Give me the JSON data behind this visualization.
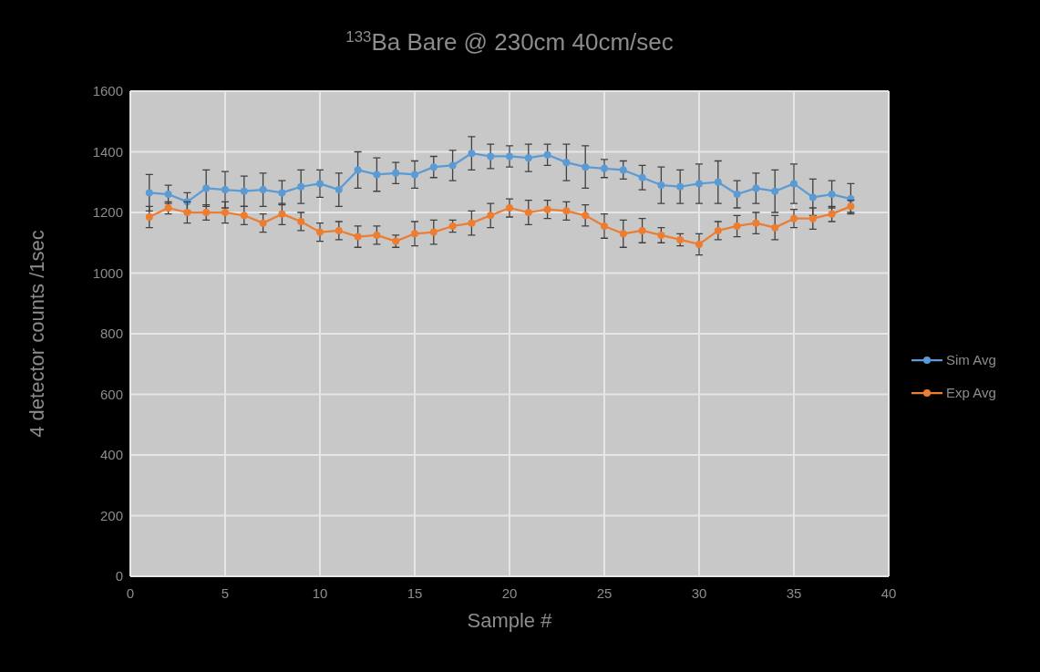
{
  "chart_data": {
    "type": "line",
    "title": "$^{133}$Ba Bare @ 230cm 40cm/sec",
    "xlabel": "Sample #",
    "ylabel": "4 detector counts /1sec",
    "x": [
      1,
      2,
      3,
      4,
      5,
      6,
      7,
      8,
      9,
      10,
      11,
      12,
      13,
      14,
      15,
      16,
      17,
      18,
      19,
      20,
      21,
      22,
      23,
      24,
      25,
      26,
      27,
      28,
      29,
      30,
      31,
      32,
      33,
      34,
      35,
      36,
      37,
      38
    ],
    "series": [
      {
        "name": "Sim Avg",
        "color": "#5b9bd5",
        "values": [
          1265,
          1260,
          1235,
          1280,
          1275,
          1270,
          1275,
          1265,
          1285,
          1295,
          1275,
          1340,
          1325,
          1330,
          1325,
          1350,
          1355,
          1395,
          1385,
          1385,
          1380,
          1390,
          1365,
          1350,
          1345,
          1340,
          1315,
          1290,
          1285,
          1295,
          1300,
          1260,
          1280,
          1270,
          1295,
          1250,
          1260,
          1245
        ],
        "errors": [
          60,
          30,
          30,
          60,
          60,
          50,
          55,
          40,
          55,
          45,
          55,
          60,
          55,
          35,
          45,
          35,
          50,
          55,
          40,
          35,
          45,
          35,
          60,
          70,
          30,
          30,
          40,
          60,
          55,
          65,
          70,
          45,
          50,
          70,
          65,
          60,
          45,
          50
        ]
      },
      {
        "name": "Exp Avg",
        "color": "#ed7d31",
        "values": [
          1185,
          1215,
          1200,
          1200,
          1200,
          1190,
          1165,
          1195,
          1170,
          1135,
          1140,
          1120,
          1125,
          1105,
          1130,
          1135,
          1155,
          1165,
          1190,
          1215,
          1200,
          1210,
          1205,
          1190,
          1155,
          1130,
          1140,
          1125,
          1110,
          1095,
          1140,
          1155,
          1165,
          1150,
          1180,
          1180,
          1195,
          1220
        ],
        "errors": [
          35,
          20,
          35,
          25,
          35,
          30,
          30,
          35,
          30,
          30,
          30,
          35,
          30,
          20,
          40,
          40,
          20,
          40,
          40,
          30,
          40,
          30,
          30,
          35,
          40,
          45,
          40,
          25,
          20,
          35,
          30,
          35,
          35,
          40,
          30,
          35,
          25,
          20
        ]
      }
    ],
    "xlim": [
      0,
      40
    ],
    "xticks": [
      0,
      5,
      10,
      15,
      20,
      25,
      30,
      35,
      40
    ],
    "ylim": [
      0,
      1600
    ],
    "yticks": [
      0,
      200,
      400,
      600,
      800,
      1000,
      1200,
      1400,
      1600
    ],
    "grid": true,
    "legend": "right",
    "marker": "circle",
    "line_style": "solid"
  }
}
